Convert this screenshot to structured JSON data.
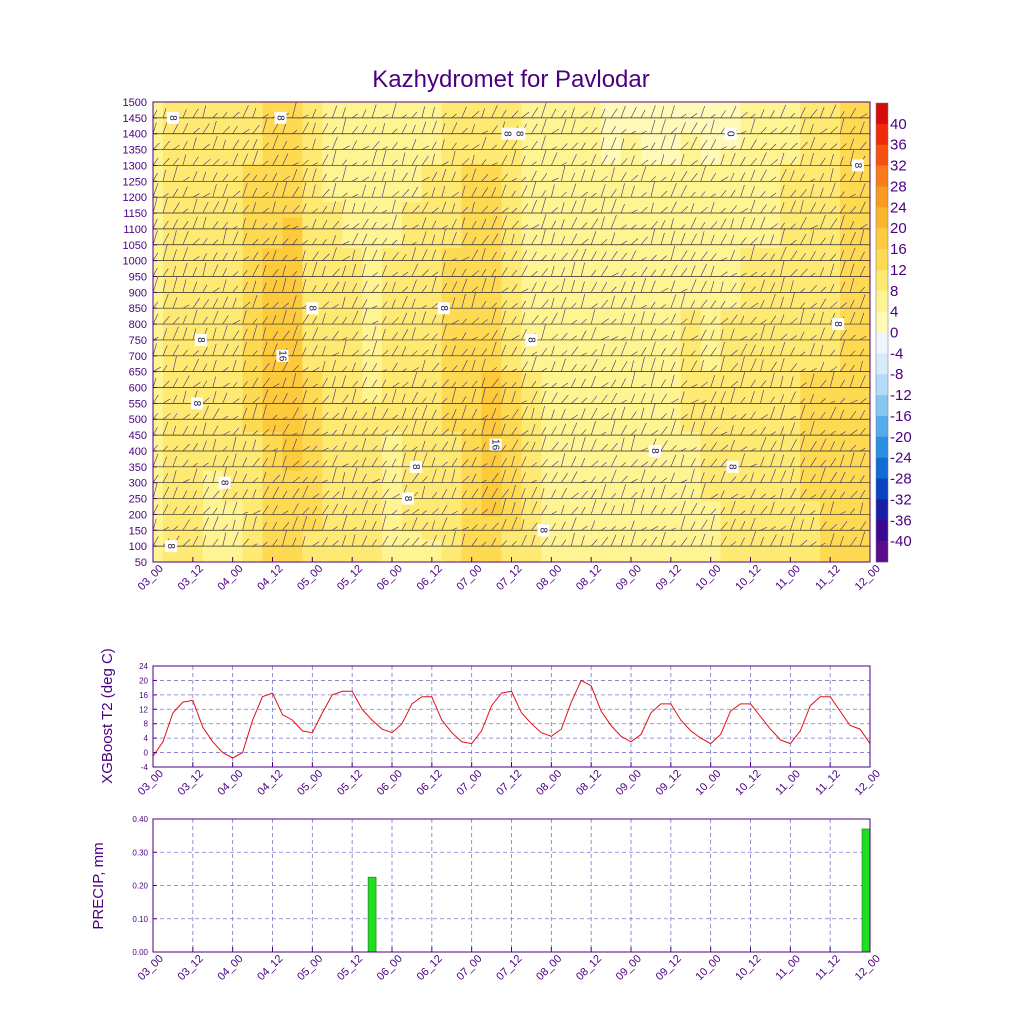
{
  "title": "Kazhydromet for Pavlodar",
  "colors": {
    "axis": "#4b0082",
    "line": "#e0101a",
    "bar": "#1ee01e",
    "barEdge": "#1a6b1a",
    "grid": "#7777cc"
  },
  "time_labels": [
    "03_00",
    "03_12",
    "04_00",
    "04_12",
    "05_00",
    "05_12",
    "06_00",
    "06_12",
    "07_00",
    "07_12",
    "08_00",
    "08_12",
    "09_00",
    "09_12",
    "10_00",
    "10_12",
    "11_00",
    "11_12",
    "12_00"
  ],
  "colorbar": {
    "labels": [
      "40",
      "36",
      "32",
      "28",
      "24",
      "20",
      "16",
      "12",
      "8",
      "4",
      "0",
      "-4",
      "-8",
      "-12",
      "-16",
      "-20",
      "-24",
      "-28",
      "-32",
      "-36",
      "-40"
    ],
    "colors": [
      "#d40d0d",
      "#f02a0b",
      "#f65113",
      "#f87a19",
      "#fa9a20",
      "#fbb52a",
      "#fcca3a",
      "#fdda52",
      "#feea72",
      "#fff492",
      "#fffab8",
      "#f0f6ff",
      "#d7ecfb",
      "#b3dcf7",
      "#86c7f2",
      "#55acec",
      "#2a8ee3",
      "#106cd6",
      "#0a44c2",
      "#1820a8",
      "#3d0a8f",
      "#5a0a8a"
    ]
  },
  "contour_labels": [
    {
      "text": "8",
      "t": 0.5,
      "h": 1450
    },
    {
      "text": "8",
      "t": 3.2,
      "h": 1450
    },
    {
      "text": "8",
      "t": 8.9,
      "h": 1400
    },
    {
      "text": "8",
      "t": 9.2,
      "h": 1400
    },
    {
      "text": "0",
      "t": 14.5,
      "h": 1400
    },
    {
      "text": "8",
      "t": 17.7,
      "h": 1300
    },
    {
      "text": "8",
      "t": 4.0,
      "h": 850
    },
    {
      "text": "8",
      "t": 7.3,
      "h": 850
    },
    {
      "text": "8",
      "t": 17.2,
      "h": 800
    },
    {
      "text": "8",
      "t": 1.2,
      "h": 750
    },
    {
      "text": "8",
      "t": 9.5,
      "h": 750
    },
    {
      "text": "16",
      "t": 3.25,
      "h": 700
    },
    {
      "text": "8",
      "t": 1.1,
      "h": 550
    },
    {
      "text": "16",
      "t": 8.6,
      "h": 420
    },
    {
      "text": "8",
      "t": 12.6,
      "h": 400
    },
    {
      "text": "8",
      "t": 6.6,
      "h": 350
    },
    {
      "text": "8",
      "t": 14.55,
      "h": 350
    },
    {
      "text": "8",
      "t": 1.8,
      "h": 300
    },
    {
      "text": "8",
      "t": 6.4,
      "h": 250
    },
    {
      "text": "8",
      "t": 9.8,
      "h": 150
    },
    {
      "text": "8",
      "t": 0.45,
      "h": 100
    }
  ],
  "chart_data": [
    {
      "type": "heatmap",
      "title": "Kazhydromet for Pavlodar",
      "xlabel": "",
      "ylabel": "",
      "x": [
        "03_00",
        "03_12",
        "04_00",
        "04_12",
        "05_00",
        "05_12",
        "06_00",
        "06_12",
        "07_00",
        "07_12",
        "08_00",
        "08_12",
        "09_00",
        "09_12",
        "10_00",
        "10_12",
        "11_00",
        "11_12",
        "12_00"
      ],
      "y_ticks": [
        50,
        100,
        150,
        200,
        250,
        300,
        350,
        400,
        450,
        500,
        550,
        600,
        650,
        700,
        750,
        800,
        850,
        900,
        950,
        1000,
        1050,
        1100,
        1150,
        1200,
        1250,
        1300,
        1350,
        1400,
        1450,
        1500
      ],
      "ylim": [
        50,
        1500
      ],
      "color_levels": [
        -40,
        -36,
        -32,
        -28,
        -24,
        -20,
        -16,
        -12,
        -8,
        -4,
        0,
        4,
        8,
        12,
        16,
        20,
        24,
        28,
        32,
        36,
        40
      ],
      "columns": [
        {
          "t": 0.0,
          "values": [
            6,
            6,
            6,
            6,
            6,
            6,
            6,
            6
          ]
        },
        {
          "t": 0.5,
          "values": [
            8,
            8,
            9,
            10,
            10,
            10,
            11,
            11
          ]
        },
        {
          "t": 1.0,
          "values": [
            9,
            9,
            10,
            10,
            10,
            10,
            10,
            10
          ]
        },
        {
          "t": 1.5,
          "values": [
            5,
            7,
            9,
            9,
            9,
            10,
            10,
            11
          ]
        },
        {
          "t": 2.0,
          "values": [
            6,
            8,
            9,
            10,
            10,
            10,
            10,
            11
          ]
        },
        {
          "t": 2.5,
          "values": [
            10,
            11,
            12,
            13,
            13,
            12,
            12,
            11
          ]
        },
        {
          "t": 3.0,
          "values": [
            12,
            14,
            16,
            17,
            18,
            16,
            13,
            12
          ]
        },
        {
          "t": 3.5,
          "values": [
            13,
            15,
            17,
            19,
            20,
            17,
            14,
            13
          ]
        },
        {
          "t": 4.0,
          "values": [
            11,
            13,
            13,
            12,
            11,
            11,
            10,
            9
          ]
        },
        {
          "t": 4.5,
          "values": [
            9,
            10,
            10,
            11,
            10,
            9,
            7,
            6
          ]
        },
        {
          "t": 5.0,
          "values": [
            8,
            10,
            9,
            9,
            9,
            8,
            6,
            5
          ]
        },
        {
          "t": 5.5,
          "values": [
            8,
            9,
            9,
            7,
            8,
            6,
            5,
            5
          ]
        },
        {
          "t": 6.0,
          "values": [
            7,
            7,
            8,
            8,
            8,
            8,
            6,
            5
          ]
        },
        {
          "t": 6.5,
          "values": [
            7,
            9,
            10,
            9,
            9,
            9,
            7,
            5
          ]
        },
        {
          "t": 7.0,
          "values": [
            7,
            10,
            11,
            11,
            10,
            9,
            8,
            7
          ]
        },
        {
          "t": 7.5,
          "values": [
            9,
            11,
            12,
            12,
            12,
            12,
            11,
            10
          ]
        },
        {
          "t": 8.0,
          "values": [
            12,
            15,
            16,
            15,
            13,
            12,
            12,
            11
          ]
        },
        {
          "t": 8.5,
          "values": [
            13,
            17,
            18,
            16,
            14,
            13,
            12,
            11
          ]
        },
        {
          "t": 9.0,
          "values": [
            11,
            13,
            13,
            12,
            11,
            9,
            8,
            8
          ]
        },
        {
          "t": 9.5,
          "values": [
            9,
            8,
            9,
            8,
            7,
            7,
            6,
            6
          ]
        },
        {
          "t": 10.0,
          "values": [
            5,
            6,
            7,
            7,
            7,
            6,
            5,
            5
          ]
        },
        {
          "t": 10.5,
          "values": [
            4,
            6,
            6,
            6,
            6,
            6,
            5,
            5
          ]
        },
        {
          "t": 11.0,
          "values": [
            4,
            5,
            5,
            5,
            6,
            6,
            5,
            4
          ]
        },
        {
          "t": 11.5,
          "values": [
            4,
            4,
            4,
            5,
            5,
            6,
            4,
            3
          ]
        },
        {
          "t": 12.0,
          "values": [
            5,
            6,
            6,
            6,
            6,
            5,
            5,
            3
          ]
        },
        {
          "t": 12.5,
          "values": [
            6,
            7,
            7,
            7,
            6,
            5,
            4,
            3
          ]
        },
        {
          "t": 13.0,
          "values": [
            6,
            7,
            7,
            7,
            6,
            5,
            4,
            2
          ]
        },
        {
          "t": 13.5,
          "values": [
            6,
            7,
            8,
            8,
            8,
            6,
            5,
            3
          ]
        },
        {
          "t": 14.0,
          "values": [
            7,
            8,
            8,
            8,
            7,
            6,
            4,
            1
          ]
        },
        {
          "t": 14.5,
          "values": [
            8,
            9,
            9,
            8,
            8,
            7,
            5,
            2
          ]
        },
        {
          "t": 15.0,
          "values": [
            9,
            10,
            10,
            10,
            9,
            8,
            6,
            4
          ]
        },
        {
          "t": 15.5,
          "values": [
            10,
            11,
            11,
            10,
            9,
            8,
            7,
            5
          ]
        },
        {
          "t": 16.0,
          "values": [
            10,
            10,
            10,
            11,
            10,
            9,
            8,
            7
          ]
        },
        {
          "t": 16.5,
          "values": [
            11,
            12,
            13,
            12,
            11,
            10,
            9,
            9
          ]
        },
        {
          "t": 17.0,
          "values": [
            12,
            13,
            13,
            12,
            11,
            10,
            10,
            11
          ]
        },
        {
          "t": 17.5,
          "values": [
            12,
            14,
            13,
            12,
            12,
            12,
            12,
            12
          ]
        },
        {
          "t": 18.0,
          "values": [
            13,
            14,
            14,
            13,
            12,
            12,
            12,
            12
          ]
        }
      ],
      "column_levels_hpa": [
        50,
        250,
        450,
        650,
        850,
        1050,
        1300,
        1500
      ]
    },
    {
      "type": "line",
      "title": "",
      "xlabel": "",
      "ylabel": "XGBoost T2 (deg C)",
      "ylim": [
        -4,
        24
      ],
      "yticks": [
        -4,
        0,
        4,
        8,
        12,
        16,
        20,
        24
      ],
      "x": [
        0.0,
        0.25,
        0.5,
        0.75,
        1.0,
        1.25,
        1.5,
        1.75,
        2.0,
        2.25,
        2.5,
        2.75,
        3.0,
        3.25,
        3.5,
        3.75,
        4.0,
        4.25,
        4.5,
        4.75,
        5.0,
        5.25,
        5.5,
        5.75,
        6.0,
        6.25,
        6.5,
        6.75,
        7.0,
        7.25,
        7.5,
        7.75,
        8.0,
        8.25,
        8.5,
        8.75,
        9.0,
        9.25,
        9.5,
        9.75,
        10.0,
        10.25,
        10.5,
        10.75,
        11.0,
        11.25,
        11.5,
        11.75,
        12.0,
        12.25,
        12.5,
        12.75,
        13.0,
        13.25,
        13.5,
        13.75,
        14.0,
        14.25,
        14.5,
        14.75,
        15.0,
        15.25,
        15.5,
        15.75,
        16.0,
        16.25,
        16.5,
        16.75,
        17.0,
        17.25,
        17.5,
        17.75,
        18.0
      ],
      "series": [
        {
          "name": "",
          "values": [
            -1.0,
            3.0,
            11.0,
            14.0,
            14.5,
            7.0,
            3.0,
            0.0,
            -1.5,
            0.0,
            9.0,
            15.5,
            16.5,
            10.5,
            9.0,
            6.0,
            5.5,
            11.0,
            16.0,
            17.0,
            17.0,
            12.0,
            9.0,
            6.5,
            5.5,
            8.0,
            13.5,
            15.5,
            15.5,
            9.0,
            5.5,
            3.0,
            2.5,
            6.0,
            13.0,
            16.5,
            17.0,
            11.0,
            8.0,
            5.5,
            4.5,
            6.5,
            14.0,
            20.0,
            18.5,
            11.5,
            7.5,
            4.5,
            3.0,
            5.0,
            11.0,
            13.5,
            13.5,
            9.0,
            6.0,
            4.0,
            2.5,
            5.0,
            11.5,
            13.5,
            13.5,
            10.0,
            6.5,
            3.5,
            2.5,
            6.0,
            13.0,
            15.5,
            15.5,
            11.5,
            7.5,
            6.5,
            2.5
          ]
        }
      ]
    },
    {
      "type": "bar",
      "title": "",
      "xlabel": "",
      "ylabel": "PRECIP, mm",
      "ylim": [
        0.0,
        0.4
      ],
      "yticks": [
        "0.00",
        "0.10",
        "0.20",
        "0.30",
        "0.40"
      ],
      "bars": [
        {
          "x": 5.5,
          "value": 0.225
        },
        {
          "x": 18.0,
          "value": 0.37
        }
      ]
    }
  ]
}
